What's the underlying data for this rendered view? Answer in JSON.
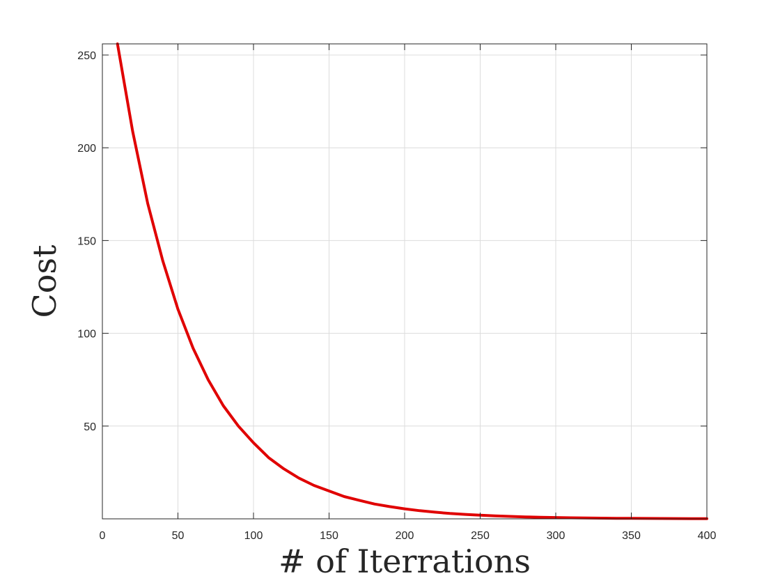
{
  "chart_data": {
    "type": "line",
    "title": "",
    "xlabel": "# of Iterrations",
    "ylabel": "Cost",
    "xlim": [
      0,
      400
    ],
    "ylim": [
      0,
      256
    ],
    "xticks": [
      0,
      50,
      100,
      150,
      200,
      250,
      300,
      350,
      400
    ],
    "yticks": [
      50,
      100,
      150,
      200,
      250
    ],
    "grid": true,
    "series": [
      {
        "color": "#e00000",
        "x": [
          10,
          20,
          30,
          40,
          50,
          60,
          70,
          80,
          90,
          100,
          110,
          120,
          130,
          140,
          150,
          160,
          170,
          180,
          190,
          200,
          210,
          220,
          230,
          240,
          250,
          260,
          270,
          280,
          290,
          300,
          310,
          320,
          330,
          340,
          350,
          360,
          370,
          380,
          390,
          400
        ],
        "y": [
          256,
          209,
          170,
          139,
          113,
          92,
          75,
          61,
          50,
          41,
          33,
          27,
          22,
          18,
          15,
          12,
          10,
          8,
          6.6,
          5.4,
          4.4,
          3.6,
          2.9,
          2.4,
          1.95,
          1.6,
          1.3,
          1.05,
          0.86,
          0.7,
          0.57,
          0.47,
          0.38,
          0.31,
          0.25,
          0.21,
          0.17,
          0.14,
          0.11,
          0.09
        ]
      }
    ]
  }
}
